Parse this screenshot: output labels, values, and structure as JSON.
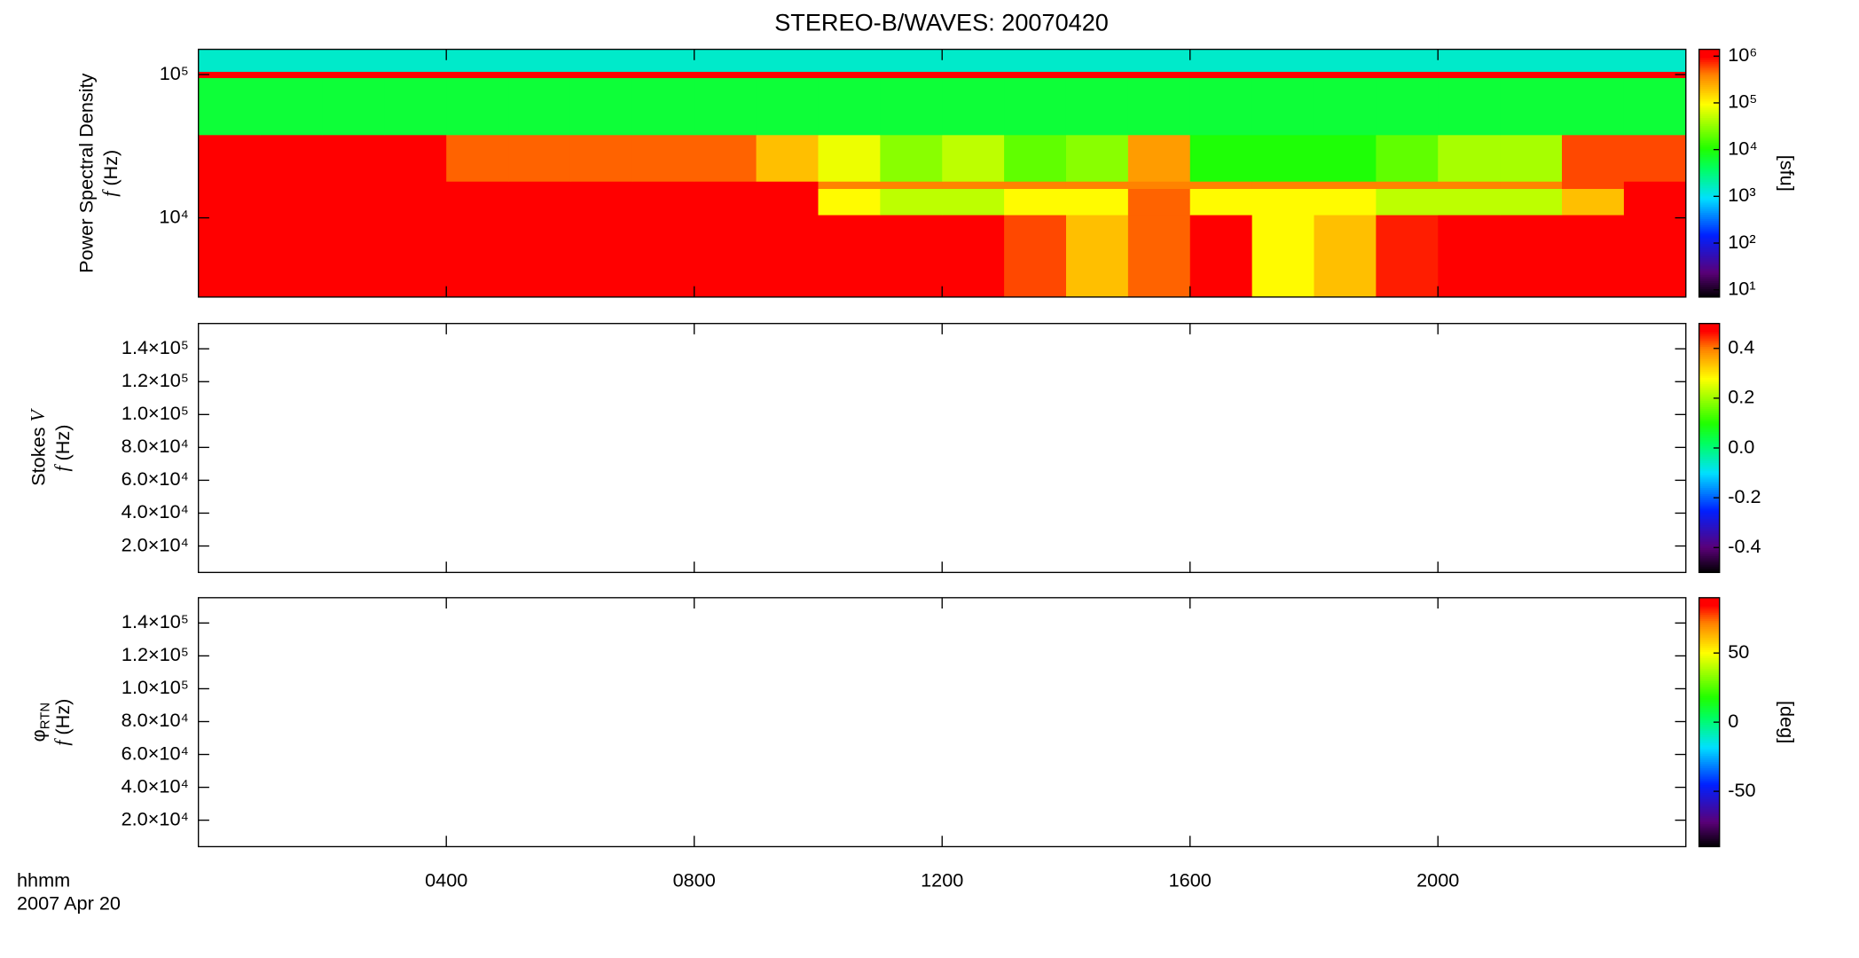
{
  "title": "STEREO-B/WAVES: 20070420",
  "time_axis": {
    "label": "hhmm",
    "date": "2007 Apr 20",
    "xlim": [
      0,
      24
    ],
    "xticks": [
      {
        "value": 4,
        "label": "0400"
      },
      {
        "value": 8,
        "label": "0800"
      },
      {
        "value": 12,
        "label": "1200"
      },
      {
        "value": 16,
        "label": "1600"
      },
      {
        "value": 20,
        "label": "2000"
      }
    ]
  },
  "chart_data": [
    {
      "type": "heatmap",
      "ylabel": "Power Spectral Density",
      "ylabel_var": "f",
      "ylabel_unit": "(Hz)",
      "ylog": true,
      "ylim": [
        2800,
        150000
      ],
      "yticks": [
        {
          "value": 10000,
          "label": "10⁴"
        },
        {
          "value": 100000,
          "label": "10⁵"
        }
      ],
      "x_edges": [
        0,
        1,
        2,
        3,
        4,
        5,
        6,
        7,
        8,
        9,
        10,
        11,
        12,
        13,
        14,
        15,
        16,
        17,
        18,
        19,
        20,
        21,
        22,
        23,
        24
      ],
      "y_edges": [
        2800,
        10500,
        16000,
        18000,
        38000,
        95000,
        105000,
        150000
      ],
      "z": [
        [
          1000000,
          1000000,
          1000000,
          1000000,
          1000000,
          1000000,
          1000000,
          1000000,
          1000000,
          1000000,
          1000000,
          1000000,
          1000000,
          600000,
          200000,
          500000,
          1000000,
          100000,
          200000,
          800000,
          1000000,
          1000000,
          1000000,
          1000000
        ],
        [
          1000000,
          1000000,
          1000000,
          1000000,
          1000000,
          1000000,
          1000000,
          1000000,
          1000000,
          1000000,
          100000,
          50000,
          50000,
          100000,
          100000,
          500000,
          100000,
          100000,
          100000,
          50000,
          50000,
          50000,
          200000,
          1000000
        ],
        [
          1000000,
          1000000,
          1000000,
          1000000,
          1000000,
          1000000,
          1000000,
          1000000,
          1000000,
          1000000,
          400000,
          400000,
          400000,
          400000,
          400000,
          400000,
          400000,
          400000,
          400000,
          400000,
          400000,
          400000,
          600000,
          1000000
        ],
        [
          1000000,
          1000000,
          1000000,
          1000000,
          500000,
          500000,
          500000,
          500000,
          500000,
          200000,
          80000,
          30000,
          50000,
          20000,
          30000,
          300000,
          10000,
          10000,
          10000,
          20000,
          40000,
          40000,
          600000,
          600000
        ],
        [
          6000,
          6000,
          6000,
          6000,
          6000,
          6000,
          6000,
          6000,
          6000,
          6000,
          6000,
          6000,
          6000,
          6000,
          6000,
          6000,
          6000,
          6000,
          6000,
          6000,
          6000,
          6000,
          6000,
          6000
        ],
        [
          1000000,
          1000000,
          1000000,
          1000000,
          1000000,
          1000000,
          1000000,
          1000000,
          1000000,
          1000000,
          1000000,
          1000000,
          1000000,
          1000000,
          1000000,
          1000000,
          1000000,
          1000000,
          1000000,
          1000000,
          1000000,
          1000000,
          1000000,
          1000000
        ],
        [
          1500,
          1500,
          1500,
          1500,
          1500,
          1500,
          1500,
          1500,
          1500,
          1500,
          1500,
          1500,
          1500,
          1500,
          1500,
          1500,
          1500,
          1500,
          1500,
          1500,
          1500,
          1500,
          1500,
          1500
        ]
      ],
      "colormap": "rainbow",
      "zlog": true,
      "zlim": [
        7,
        1400000
      ],
      "zticks": [
        {
          "value": 10,
          "label": "10¹"
        },
        {
          "value": 100,
          "label": "10²"
        },
        {
          "value": 1000,
          "label": "10³"
        },
        {
          "value": 10000,
          "label": "10⁴"
        },
        {
          "value": 100000,
          "label": "10⁵"
        },
        {
          "value": 1000000,
          "label": "10⁶"
        }
      ],
      "colorbar_label": "[sfu]"
    },
    {
      "type": "heatmap",
      "ylabel": "Stokes",
      "ylabel_sym": "V",
      "ylabel_var": "f",
      "ylabel_unit": "(Hz)",
      "ylog": false,
      "ylim": [
        3900,
        155400
      ],
      "yticks": [
        {
          "value": 20000,
          "label": "2.0×10⁴"
        },
        {
          "value": 40000,
          "label": "4.0×10⁴"
        },
        {
          "value": 60000,
          "label": "6.0×10⁴"
        },
        {
          "value": 80000,
          "label": "8.0×10⁴"
        },
        {
          "value": 100000,
          "label": "1.0×10⁵"
        },
        {
          "value": 120000,
          "label": "1.2×10⁵"
        },
        {
          "value": 140000,
          "label": "1.4×10⁵"
        }
      ],
      "colormap": "rainbow",
      "zlog": false,
      "zlim": [
        -0.5,
        0.5
      ],
      "zticks": [
        -0.4,
        -0.2,
        {
          "value": 0,
          "label": "0.0"
        },
        0.2,
        0.4
      ]
    },
    {
      "type": "heatmap",
      "ylabel": "φ",
      "ylabel_sub": "RTN",
      "ylabel_var": "f",
      "ylabel_unit": "(Hz)",
      "ylog": false,
      "ylim": [
        3900,
        155400
      ],
      "yticks": [
        {
          "value": 20000,
          "label": "2.0×10⁴"
        },
        {
          "value": 40000,
          "label": "4.0×10⁴"
        },
        {
          "value": 60000,
          "label": "6.0×10⁴"
        },
        {
          "value": 80000,
          "label": "8.0×10⁴"
        },
        {
          "value": 100000,
          "label": "1.0×10⁵"
        },
        {
          "value": 120000,
          "label": "1.2×10⁵"
        },
        {
          "value": 140000,
          "label": "1.4×10⁵"
        }
      ],
      "colormap": "rainbow",
      "zlog": false,
      "zlim": [
        -90,
        90
      ],
      "zticks": [
        -50,
        0,
        50
      ],
      "colorbar_label": "[deg]"
    }
  ]
}
